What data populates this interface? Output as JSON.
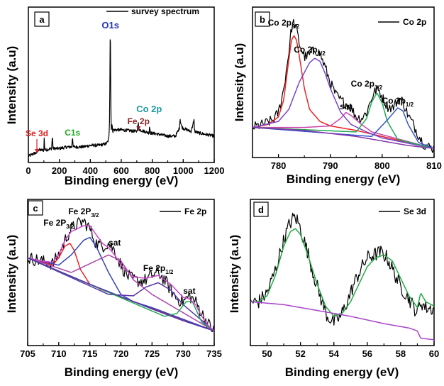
{
  "chart_data": [
    {
      "type": "line",
      "panel": "a",
      "xlabel": "Binding energy (eV)",
      "ylabel": "Intensity (a.u)",
      "xlim": [
        0,
        1200
      ],
      "xticks": [
        0,
        200,
        400,
        600,
        800,
        1000,
        1200
      ],
      "legend": "survey spectrum",
      "series": [
        {
          "name": "survey spectrum",
          "color": "#000000",
          "x": [
            0,
            40,
            55,
            60,
            100,
            102,
            105,
            110,
            150,
            155,
            160,
            170,
            200,
            250,
            280,
            285,
            290,
            300,
            350,
            400,
            450,
            500,
            510,
            515,
            520,
            525,
            529,
            531,
            533,
            536,
            540,
            545,
            550,
            560,
            600,
            700,
            710,
            712,
            720,
            780,
            782,
            790,
            850,
            900,
            950,
            975,
            980,
            983,
            990,
            1000,
            1050,
            1070,
            1072,
            1075,
            1100,
            1150,
            1200
          ],
          "y": [
            0.04,
            0.06,
            0.06,
            0.08,
            0.08,
            0.16,
            0.09,
            0.08,
            0.09,
            0.17,
            0.09,
            0.09,
            0.09,
            0.1,
            0.1,
            0.17,
            0.1,
            0.1,
            0.1,
            0.11,
            0.11,
            0.12,
            0.13,
            0.14,
            0.16,
            0.3,
            0.96,
            0.6,
            0.3,
            0.22,
            0.24,
            0.2,
            0.21,
            0.21,
            0.21,
            0.2,
            0.25,
            0.22,
            0.21,
            0.19,
            0.23,
            0.19,
            0.18,
            0.17,
            0.17,
            0.22,
            0.28,
            0.26,
            0.23,
            0.22,
            0.2,
            0.27,
            0.22,
            0.2,
            0.19,
            0.18,
            0.17
          ]
        }
      ],
      "annotations": [
        {
          "text": "O1s",
          "x": 530,
          "color": "#2233bb"
        },
        {
          "text": "Se 3d",
          "x": 55,
          "color": "#dd2222"
        },
        {
          "text": "C1s",
          "x": 285,
          "color": "#22aa22"
        },
        {
          "text": "Fe 2p",
          "x": 711,
          "color": "#882222"
        },
        {
          "text": "Co 2p",
          "x": 780,
          "color": "#1a9aa0"
        }
      ]
    },
    {
      "type": "line",
      "panel": "b",
      "xlabel": "Binding energy (eV)",
      "ylabel": "Intensity (a.u)",
      "xlim": [
        775,
        810
      ],
      "xticks": [
        780,
        790,
        800,
        810
      ],
      "legend": "Co 2p",
      "series": [
        {
          "name": "Co 2p",
          "color": "#000000",
          "x": [
            775,
            777,
            779,
            780,
            781,
            782,
            782.5,
            783,
            783.5,
            784,
            785,
            786,
            787,
            788,
            789,
            790,
            791,
            792,
            793,
            794,
            795,
            796,
            797,
            798,
            798.8,
            799.5,
            800,
            801,
            802,
            803,
            803.5,
            804,
            805,
            806,
            807,
            808,
            809,
            810
          ],
          "y": [
            0.2,
            0.22,
            0.25,
            0.3,
            0.45,
            0.7,
            0.86,
            0.9,
            0.85,
            0.76,
            0.67,
            0.68,
            0.72,
            0.69,
            0.6,
            0.5,
            0.42,
            0.38,
            0.36,
            0.33,
            0.27,
            0.26,
            0.3,
            0.4,
            0.45,
            0.44,
            0.4,
            0.34,
            0.33,
            0.38,
            0.39,
            0.37,
            0.28,
            0.22,
            0.15,
            0.09,
            0.07,
            0.06
          ]
        },
        {
          "name": "Co 2p3/2 fit",
          "color": "#ee2222",
          "x": [
            775,
            778,
            780,
            781,
            782,
            782.5,
            783,
            783.5,
            784,
            785,
            786,
            788,
            790,
            795,
            810
          ],
          "y": [
            0.2,
            0.22,
            0.27,
            0.38,
            0.65,
            0.78,
            0.81,
            0.78,
            0.68,
            0.46,
            0.32,
            0.24,
            0.21,
            0.18,
            0.06
          ]
        },
        {
          "name": "Co 2p3/2 fit 2",
          "color": "#7744cc",
          "x": [
            775,
            780,
            782,
            784,
            786,
            787,
            788,
            789,
            790,
            792,
            794,
            797,
            800,
            810
          ],
          "y": [
            0.2,
            0.24,
            0.32,
            0.5,
            0.63,
            0.66,
            0.64,
            0.56,
            0.46,
            0.3,
            0.22,
            0.17,
            0.13,
            0.06
          ]
        },
        {
          "name": "sat fit",
          "color": "#cc44aa",
          "x": [
            775,
            785,
            790,
            792,
            793,
            794,
            796,
            798,
            810
          ],
          "y": [
            0.2,
            0.2,
            0.21,
            0.26,
            0.3,
            0.28,
            0.22,
            0.17,
            0.06
          ]
        },
        {
          "name": "Co 2p1/2 fit",
          "color": "#22aa55",
          "x": [
            775,
            795,
            797,
            798,
            799,
            800,
            801,
            803,
            810
          ],
          "y": [
            0.2,
            0.17,
            0.26,
            0.37,
            0.43,
            0.36,
            0.24,
            0.12,
            0.06
          ]
        },
        {
          "name": "Co 2p1/2 fit 2",
          "color": "#3355cc",
          "x": [
            775,
            798,
            801,
            803,
            804,
            805,
            807,
            810
          ],
          "y": [
            0.2,
            0.14,
            0.25,
            0.33,
            0.31,
            0.22,
            0.1,
            0.06
          ]
        },
        {
          "name": "background",
          "color": "#8833aa",
          "x": [
            775,
            785,
            795,
            800,
            805,
            810
          ],
          "y": [
            0.2,
            0.18,
            0.14,
            0.11,
            0.08,
            0.06
          ]
        }
      ],
      "annotations": [
        {
          "text": "Co 2p",
          "sub": "3/2",
          "x": 781
        },
        {
          "text": "Co 2p",
          "sub": "3/2",
          "x": 786
        },
        {
          "text": "sat",
          "x": 793
        },
        {
          "text": "Co 2p",
          "sub": "1/2",
          "x": 797
        },
        {
          "text": "Co 2p",
          "sub": "1/2",
          "x": 803
        }
      ]
    },
    {
      "type": "line",
      "panel": "c",
      "xlabel": "Binding energy (eV)",
      "ylabel": "Intensity (a.u)",
      "xlim": [
        705,
        735
      ],
      "xticks": [
        705,
        710,
        715,
        720,
        725,
        730,
        735
      ],
      "legend": "Fe 2p",
      "series": [
        {
          "name": "Fe 2p",
          "color": "#000000",
          "x": [
            705,
            707,
            709,
            710,
            711,
            712,
            713,
            714,
            715,
            716,
            717,
            718,
            719,
            720,
            721,
            722,
            723,
            724,
            725,
            726,
            727,
            728,
            729,
            730,
            731,
            732,
            733,
            734,
            735
          ],
          "y": [
            0.6,
            0.58,
            0.56,
            0.62,
            0.72,
            0.8,
            0.83,
            0.85,
            0.8,
            0.7,
            0.68,
            0.7,
            0.65,
            0.55,
            0.48,
            0.45,
            0.44,
            0.45,
            0.48,
            0.5,
            0.45,
            0.38,
            0.32,
            0.3,
            0.34,
            0.3,
            0.22,
            0.15,
            0.1
          ]
        },
        {
          "name": "Fe 2P3/2 fit",
          "color": "#ee2222",
          "x": [
            705,
            709,
            710,
            711,
            711.8,
            712.5,
            713.5,
            715,
            717,
            735
          ],
          "y": [
            0.6,
            0.55,
            0.6,
            0.68,
            0.7,
            0.65,
            0.52,
            0.42,
            0.38,
            0.1
          ]
        },
        {
          "name": "Fe 2P3/2 fit 2",
          "color": "#3344bb",
          "x": [
            705,
            710,
            712,
            714,
            715,
            716,
            718,
            720,
            722,
            725,
            735
          ],
          "y": [
            0.6,
            0.55,
            0.62,
            0.72,
            0.74,
            0.68,
            0.5,
            0.35,
            0.3,
            0.26,
            0.1
          ]
        },
        {
          "name": "sat fit",
          "color": "#aa44aa",
          "x": [
            705,
            712,
            716,
            718,
            720,
            722,
            725,
            735
          ],
          "y": [
            0.6,
            0.5,
            0.58,
            0.62,
            0.58,
            0.45,
            0.35,
            0.1
          ]
        },
        {
          "name": "Fe 2p1/2 fit",
          "color": "#5533aa",
          "x": [
            705,
            718,
            722,
            724,
            726,
            728,
            730,
            735
          ],
          "y": [
            0.6,
            0.35,
            0.34,
            0.4,
            0.43,
            0.38,
            0.28,
            0.1
          ]
        },
        {
          "name": "sat fit 2",
          "color": "#22aa55",
          "x": [
            705,
            727,
            729,
            730.5,
            731.5,
            733,
            735
          ],
          "y": [
            0.6,
            0.2,
            0.22,
            0.3,
            0.3,
            0.16,
            0.1
          ]
        },
        {
          "name": "envelope",
          "color": "#cc44cc",
          "x": [
            705,
            707,
            709,
            710,
            711,
            712,
            713,
            714,
            715,
            716,
            717,
            718,
            719,
            720,
            722,
            724,
            726,
            728,
            730,
            731,
            732,
            733,
            734,
            735
          ],
          "y": [
            0.6,
            0.58,
            0.57,
            0.62,
            0.72,
            0.78,
            0.8,
            0.82,
            0.82,
            0.76,
            0.7,
            0.67,
            0.62,
            0.55,
            0.47,
            0.46,
            0.48,
            0.42,
            0.33,
            0.32,
            0.28,
            0.2,
            0.14,
            0.1
          ]
        },
        {
          "name": "background",
          "color": "#5533aa",
          "x": [
            705,
            715,
            725,
            730,
            735
          ],
          "y": [
            0.6,
            0.42,
            0.25,
            0.17,
            0.1
          ]
        }
      ],
      "annotations": [
        {
          "text": "Fe 2P",
          "sub": "3/2",
          "x": 710
        },
        {
          "text": "Fe 2P",
          "sub": "3/2",
          "x": 714
        },
        {
          "text": "sat",
          "x": 719
        },
        {
          "text": "Fe 2p",
          "sub": "1/2",
          "x": 726
        },
        {
          "text": "sat",
          "x": 731
        }
      ]
    },
    {
      "type": "line",
      "panel": "d",
      "xlabel": "Binding energy (eV)",
      "ylabel": "Intensity (a.u)",
      "xlim": [
        49,
        60
      ],
      "xticks": [
        50,
        52,
        54,
        56,
        58,
        60
      ],
      "legend": "Se 3d",
      "series": [
        {
          "name": "Se 3d",
          "color": "#000000",
          "x": [
            49,
            49.5,
            50,
            50.5,
            51,
            51.3,
            51.6,
            51.8,
            52,
            52.4,
            52.8,
            53.2,
            53.6,
            54,
            54.4,
            54.8,
            55.2,
            55.6,
            56,
            56.4,
            56.8,
            57,
            57.2,
            57.6,
            58,
            58.4,
            58.8,
            59,
            59.2,
            59.5,
            60
          ],
          "y": [
            0.3,
            0.3,
            0.36,
            0.52,
            0.72,
            0.82,
            0.88,
            0.86,
            0.8,
            0.65,
            0.48,
            0.33,
            0.2,
            0.16,
            0.2,
            0.3,
            0.42,
            0.52,
            0.6,
            0.62,
            0.64,
            0.62,
            0.6,
            0.5,
            0.4,
            0.34,
            0.26,
            0.22,
            0.3,
            0.26,
            0.25
          ]
        },
        {
          "name": "fit",
          "color": "#22aa44",
          "x": [
            49,
            49.5,
            50,
            50.5,
            51,
            51.4,
            51.7,
            52,
            52.5,
            53,
            53.5,
            54,
            54.5,
            55,
            55.5,
            56,
            56.5,
            57,
            57.5,
            58,
            58.5,
            59,
            59.2,
            59.5,
            60
          ],
          "y": [
            0.3,
            0.3,
            0.34,
            0.48,
            0.68,
            0.78,
            0.8,
            0.76,
            0.6,
            0.42,
            0.27,
            0.2,
            0.22,
            0.3,
            0.42,
            0.54,
            0.6,
            0.62,
            0.58,
            0.46,
            0.34,
            0.26,
            0.36,
            0.3,
            0.27
          ]
        },
        {
          "name": "background",
          "color": "#aa44cc",
          "x": [
            49,
            51,
            53,
            55,
            57,
            58.5,
            59,
            59.2,
            60
          ],
          "y": [
            0.3,
            0.28,
            0.24,
            0.2,
            0.15,
            0.12,
            0.1,
            0.05,
            0.04
          ]
        }
      ]
    }
  ]
}
